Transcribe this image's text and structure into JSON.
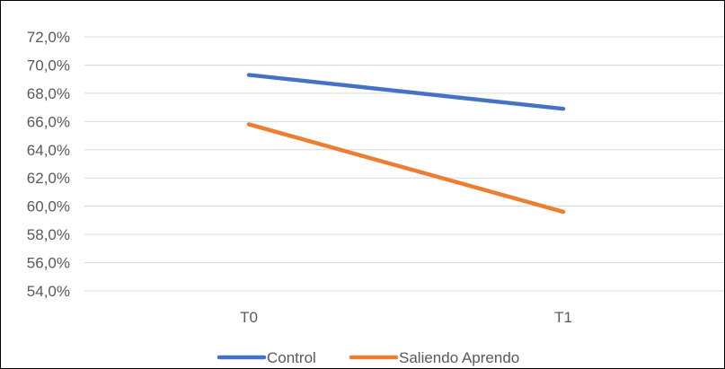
{
  "chart_data": {
    "type": "line",
    "title": "",
    "xlabel": "",
    "ylabel": "",
    "categories": [
      "T0",
      "T1"
    ],
    "ylim": [
      54.0,
      72.0
    ],
    "yticks": [
      72.0,
      70.0,
      68.0,
      66.0,
      64.0,
      62.0,
      60.0,
      58.0,
      56.0,
      54.0
    ],
    "ytick_labels": [
      "72,0%",
      "70,0%",
      "68,0%",
      "66,0%",
      "64,0%",
      "62,0%",
      "60,0%",
      "58,0%",
      "56,0%",
      "54,0%"
    ],
    "grid": true,
    "legend_position": "bottom",
    "series": [
      {
        "name": "Control",
        "color": "#4472C4",
        "values": [
          69.3,
          66.9
        ]
      },
      {
        "name": "Saliendo Aprendo",
        "color": "#ED7D31",
        "values": [
          65.8,
          59.6
        ]
      }
    ]
  }
}
